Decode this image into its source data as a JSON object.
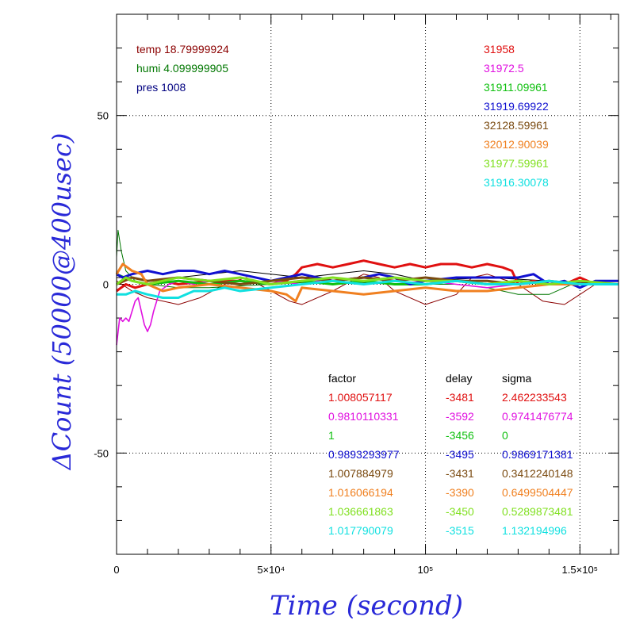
{
  "chart_data": {
    "type": "line",
    "xlabel": "Time (second)",
    "ylabel": "ΔCount (50000@400usec)",
    "xlim": [
      0,
      162500
    ],
    "ylim": [
      -80,
      80
    ],
    "x_tick_labels": [
      "0",
      "5×10⁴",
      "10⁵",
      "1.5×10⁵"
    ],
    "x_tick_values": [
      0,
      50000,
      100000,
      150000
    ],
    "y_tick_labels": [
      "50",
      "0",
      "-50"
    ],
    "y_tick_values": [
      50,
      0,
      -50
    ],
    "grid": "dotted",
    "env_info": [
      {
        "text": "temp 18.79999924",
        "color": "#8b0000"
      },
      {
        "text": "humi 4.099999905",
        "color": "#007700"
      },
      {
        "text": "pres 1008",
        "color": "#000080"
      }
    ],
    "count_values": [
      {
        "text": "31958",
        "color": "#e01010"
      },
      {
        "text": "31972.5",
        "color": "#e010e0"
      },
      {
        "text": "31911.09961",
        "color": "#10c010"
      },
      {
        "text": "31919.69922",
        "color": "#1010d0"
      },
      {
        "text": "32128.59961",
        "color": "#7a4a10"
      },
      {
        "text": "32012.90039",
        "color": "#f08020"
      },
      {
        "text": "31977.59961",
        "color": "#80e020"
      },
      {
        "text": "31916.30078",
        "color": "#10e0e0"
      }
    ],
    "table": {
      "headers": [
        "factor",
        "delay",
        "sigma"
      ],
      "rows": [
        {
          "factor": "1.008057117",
          "delay": "-3481",
          "sigma": "2.462233543",
          "color": "#e01010"
        },
        {
          "factor": "0.9810110331",
          "delay": "-3592",
          "sigma": "0.9741476774",
          "color": "#e010e0"
        },
        {
          "factor": "1",
          "delay": "-3456",
          "sigma": "0",
          "color": "#10c010"
        },
        {
          "factor": "0.9893293977",
          "delay": "-3495",
          "sigma": "0.9869171381",
          "color": "#1010d0"
        },
        {
          "factor": "1.007884979",
          "delay": "-3431",
          "sigma": "0.3412240148",
          "color": "#7a4a10"
        },
        {
          "factor": "1.016066194",
          "delay": "-3390",
          "sigma": "0.6499504447",
          "color": "#f08020"
        },
        {
          "factor": "1.036661863",
          "delay": "-3450",
          "sigma": "0.5289873481",
          "color": "#80e020"
        },
        {
          "factor": "1.017790079",
          "delay": "-3515",
          "sigma": "1.132194996",
          "color": "#10e0e0"
        }
      ]
    },
    "series": [
      {
        "color": "#8b0000",
        "width": 1,
        "x": [
          0,
          5000,
          10000,
          20000,
          27000,
          35000,
          42000,
          50000,
          56000,
          60000,
          70000,
          80000,
          85000,
          90000,
          100000,
          110000,
          115000,
          120000,
          130000,
          138000,
          145000,
          150000,
          155000,
          162500
        ],
        "y": [
          1,
          -2,
          -4,
          -6,
          -4,
          0,
          2,
          -2,
          -5,
          -6,
          -2,
          3,
          2,
          -2,
          -6,
          -3,
          2,
          3,
          0,
          -5,
          -6,
          -3,
          0,
          0
        ]
      },
      {
        "color": "#007700",
        "width": 1,
        "x": [
          0,
          500,
          1500,
          3000,
          6000,
          10000,
          20000,
          30000,
          50000,
          70000,
          90000,
          110000,
          120000,
          130000,
          140000,
          150000,
          162500
        ],
        "y": [
          8,
          16,
          10,
          4,
          1,
          0,
          -1,
          -1,
          0,
          1,
          0,
          0,
          -1,
          -3,
          -3,
          1,
          0
        ]
      },
      {
        "color": "#000000",
        "width": 1,
        "x": [
          0,
          5000,
          10000,
          20000,
          30000,
          40000,
          50000,
          60000,
          70000,
          80000,
          90000,
          100000,
          120000,
          140000,
          162500
        ],
        "y": [
          2,
          2,
          1,
          2,
          3,
          4,
          3,
          2,
          3,
          4,
          3,
          1,
          2,
          1,
          0
        ]
      },
      {
        "color": "#e01010",
        "width": 3,
        "x": [
          0,
          3000,
          6000,
          10000,
          15000,
          20000,
          30000,
          40000,
          50000,
          55000,
          58000,
          60000,
          65000,
          70000,
          75000,
          80000,
          85000,
          90000,
          95000,
          100000,
          105000,
          110000,
          115000,
          120000,
          125000,
          128000,
          130000,
          135000,
          140000,
          145000,
          150000,
          155000,
          162500
        ],
        "y": [
          -2,
          0,
          -1,
          0,
          1,
          0,
          1,
          1,
          0,
          1,
          3,
          5,
          6,
          5,
          6,
          7,
          6,
          5,
          6,
          5,
          6,
          6,
          5,
          6,
          5,
          4,
          0,
          1,
          0,
          0,
          2,
          0,
          0
        ]
      },
      {
        "color": "#e010e0",
        "width": 1.6,
        "x": [
          0,
          1000,
          2000,
          3000,
          4000,
          5000,
          6000,
          7000,
          8000,
          9000,
          10000,
          11000,
          12000,
          14000,
          17000,
          20000,
          25000,
          30000,
          40000,
          50000,
          60000,
          70000,
          80000,
          90000,
          100000,
          110000,
          120000,
          130000,
          140000,
          150000,
          162500
        ],
        "y": [
          -18,
          -10,
          -11,
          -10,
          -11,
          -8,
          -5,
          -4,
          -8,
          -12,
          -14,
          -12,
          -8,
          -2,
          0,
          1,
          0,
          1,
          0,
          1,
          0,
          2,
          1,
          0,
          1,
          0,
          -1,
          0,
          1,
          0,
          0
        ]
      },
      {
        "color": "#10c010",
        "width": 3,
        "x": [
          0,
          5000,
          10000,
          20000,
          30000,
          40000,
          50000,
          60000,
          70000,
          80000,
          90000,
          100000,
          110000,
          120000,
          130000,
          140000,
          150000,
          162500
        ],
        "y": [
          3,
          1,
          0,
          1,
          0,
          1,
          0,
          1,
          0,
          1,
          0,
          0,
          1,
          0,
          1,
          0,
          0,
          0
        ]
      },
      {
        "color": "#1010d0",
        "width": 3,
        "x": [
          0,
          2000,
          5000,
          10000,
          15000,
          20000,
          25000,
          30000,
          35000,
          40000,
          50000,
          60000,
          65000,
          70000,
          80000,
          85000,
          90000,
          95000,
          100000,
          110000,
          120000,
          130000,
          135000,
          140000,
          145000,
          150000,
          155000,
          162500
        ],
        "y": [
          3,
          2,
          3,
          4,
          3,
          4,
          4,
          3,
          4,
          3,
          1,
          3,
          2,
          1,
          2,
          3,
          2,
          0,
          1,
          2,
          2,
          2,
          3,
          0,
          1,
          -1,
          1,
          1
        ]
      },
      {
        "color": "#7a4a10",
        "width": 3,
        "x": [
          0,
          5000,
          10000,
          20000,
          30000,
          40000,
          50000,
          60000,
          70000,
          80000,
          90000,
          100000,
          110000,
          120000,
          130000,
          140000,
          150000,
          162500
        ],
        "y": [
          0,
          2,
          1,
          2,
          1,
          0,
          1,
          2,
          1,
          2,
          1,
          2,
          1,
          1,
          0,
          1,
          0,
          0
        ]
      },
      {
        "color": "#f08020",
        "width": 3,
        "x": [
          0,
          2000,
          5000,
          8000,
          10000,
          15000,
          20000,
          30000,
          40000,
          50000,
          55000,
          58000,
          60000,
          70000,
          80000,
          90000,
          100000,
          110000,
          120000,
          130000,
          140000,
          150000,
          162500
        ],
        "y": [
          3,
          6,
          4,
          3,
          0,
          -2,
          -1,
          0,
          -1,
          -2,
          -3,
          -5,
          -1,
          -2,
          -3,
          -2,
          -1,
          -2,
          -2,
          -1,
          0,
          0,
          0
        ]
      },
      {
        "color": "#80e020",
        "width": 3,
        "x": [
          0,
          3000,
          5000,
          10000,
          15000,
          20000,
          30000,
          40000,
          50000,
          60000,
          70000,
          80000,
          90000,
          100000,
          110000,
          120000,
          130000,
          140000,
          150000,
          162500
        ],
        "y": [
          0,
          2,
          1,
          0,
          1,
          2,
          1,
          2,
          0,
          1,
          2,
          1,
          2,
          1,
          1,
          0,
          1,
          0,
          1,
          0
        ]
      },
      {
        "color": "#10e0e0",
        "width": 3,
        "x": [
          0,
          3000,
          6000,
          10000,
          15000,
          20000,
          25000,
          30000,
          35000,
          40000,
          50000,
          60000,
          70000,
          80000,
          90000,
          100000,
          110000,
          120000,
          130000,
          140000,
          150000,
          162500
        ],
        "y": [
          -3,
          -3,
          -2,
          -3,
          -4,
          -4,
          -2,
          -2,
          -1,
          -2,
          -1,
          0,
          1,
          0,
          1,
          0,
          1,
          0,
          0,
          1,
          0,
          0
        ]
      }
    ]
  }
}
